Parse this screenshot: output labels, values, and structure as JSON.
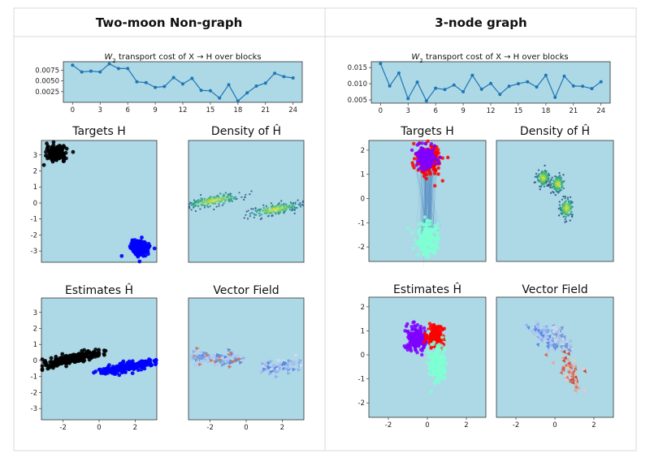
{
  "columns": [
    {
      "title": "Two-moon Non-graph",
      "transport_title_pre": "W",
      "transport_title_sub": "2",
      "transport_title_post": " transport cost of X → H over blocks",
      "panel_titles": {
        "targets": "Targets H",
        "density": "Density of Ĥ",
        "estimates": "Estimates Ĥ",
        "vector_field": "Vector Field"
      }
    },
    {
      "title": "3-node graph",
      "transport_title_pre": "W",
      "transport_title_sub": "2",
      "transport_title_post": " transport cost of X → H over blocks",
      "panel_titles": {
        "targets": "Targets H",
        "density": "Density of Ĥ",
        "estimates": "Estimates Ĥ",
        "vector_field": "Vector Field"
      }
    }
  ],
  "colors": {
    "panel_bg": "#add8e6",
    "line": "#1f77b4",
    "black_cluster": "#000000",
    "blue_cluster": "#0000ff",
    "red_cluster": "#ff0000",
    "purple_cluster": "#7f00ff",
    "green_cluster": "#7fffd4",
    "density_low": "#3b4cc0",
    "density_high": "#fde725"
  },
  "chart_data": [
    {
      "type": "line",
      "title": "W2 transport cost of X → H over blocks",
      "x": [
        0,
        1,
        2,
        3,
        4,
        5,
        6,
        7,
        8,
        9,
        10,
        11,
        12,
        13,
        14,
        15,
        16,
        17,
        18,
        19,
        20,
        21,
        22,
        23,
        24
      ],
      "series": [
        {
          "values": [
            0.0087,
            0.0071,
            0.0073,
            0.0071,
            0.009,
            0.0079,
            0.0079,
            0.0048,
            0.0046,
            0.0035,
            0.0037,
            0.0058,
            0.0043,
            0.0056,
            0.0028,
            0.0027,
            0.001,
            0.0041,
            0.0003,
            0.0022,
            0.0038,
            0.0045,
            0.0068,
            0.006,
            0.0057
          ]
        }
      ],
      "xticks": [
        "0",
        "3",
        "6",
        "9",
        "12",
        "15",
        "18",
        "21",
        "24"
      ],
      "yticks": [
        "0.0025",
        "0.0050",
        "0.0075"
      ],
      "ylim": [
        0.0,
        0.0095
      ]
    },
    {
      "type": "line",
      "title": "W2 transport cost of X → H over blocks",
      "x": [
        0,
        1,
        2,
        3,
        4,
        5,
        6,
        7,
        8,
        9,
        10,
        11,
        12,
        13,
        14,
        15,
        16,
        17,
        18,
        19,
        20,
        21,
        22,
        23,
        24
      ],
      "series": [
        {
          "values": [
            0.0162,
            0.0093,
            0.0133,
            0.0054,
            0.0105,
            0.0047,
            0.0086,
            0.0082,
            0.0096,
            0.0075,
            0.0126,
            0.0083,
            0.0101,
            0.0067,
            0.0092,
            0.01,
            0.0106,
            0.009,
            0.0126,
            0.0058,
            0.0123,
            0.0093,
            0.0092,
            0.0085,
            0.0106
          ]
        }
      ],
      "xticks": [
        "0",
        "3",
        "6",
        "9",
        "12",
        "15",
        "18",
        "21",
        "24"
      ],
      "yticks": [
        "0.005",
        "0.010",
        "0.015"
      ],
      "ylim": [
        0.004,
        0.0168
      ]
    },
    {
      "type": "scatter",
      "title": "Targets H",
      "xlim": [
        -3.2,
        3.2
      ],
      "ylim": [
        -3.7,
        3.9
      ],
      "yticks": [
        "3",
        "2",
        "1",
        "0",
        "-1",
        "-2",
        "-3"
      ],
      "series": [
        {
          "color": "black",
          "center": [
            -2.4,
            3.1
          ],
          "spread": [
            0.7,
            0.6
          ]
        },
        {
          "color": "blue",
          "center": [
            2.3,
            -2.8
          ],
          "spread": [
            0.7,
            0.6
          ]
        }
      ]
    },
    {
      "type": "scatter",
      "title": "Density of Ĥ",
      "xlim": [
        -3.2,
        3.2
      ],
      "ylim": [
        -3.7,
        3.9
      ],
      "series": [
        {
          "color": "density",
          "center": [
            -1.8,
            0.15
          ],
          "spread": [
            2.2,
            0.5
          ],
          "slope": 0.2
        },
        {
          "color": "density",
          "center": [
            1.6,
            -0.4
          ],
          "spread": [
            2.0,
            0.5
          ],
          "slope": 0.2
        }
      ]
    },
    {
      "type": "scatter",
      "title": "Estimates Ĥ",
      "xlim": [
        -3.2,
        3.2
      ],
      "ylim": [
        -3.7,
        3.9
      ],
      "xticks": [
        "-2",
        "0",
        "2"
      ],
      "yticks": [
        "3",
        "2",
        "1",
        "0",
        "-1",
        "-2",
        "-3"
      ],
      "series": [
        {
          "color": "black",
          "center": [
            -1.5,
            0.1
          ],
          "spread": [
            2.4,
            0.4
          ],
          "slope": 0.22
        },
        {
          "color": "blue",
          "center": [
            1.6,
            -0.4
          ],
          "spread": [
            2.2,
            0.4
          ],
          "slope": 0.2
        }
      ]
    },
    {
      "type": "scatter",
      "title": "Vector Field",
      "xlim": [
        -3.2,
        3.2
      ],
      "ylim": [
        -3.7,
        3.9
      ],
      "xticks": [
        "-2",
        "0",
        "2"
      ]
    },
    {
      "type": "scatter",
      "title": "Targets H",
      "xlim": [
        -3.0,
        3.0
      ],
      "ylim": [
        -2.6,
        2.4
      ],
      "yticks": [
        "2",
        "1",
        "0",
        "-1",
        "-2"
      ],
      "series": [
        {
          "color": "red",
          "center": [
            0.1,
            1.6
          ],
          "spread": [
            0.9,
            0.9
          ]
        },
        {
          "color": "purple",
          "center": [
            -0.1,
            1.7
          ],
          "spread": [
            0.6,
            0.6
          ]
        },
        {
          "color": "green",
          "center": [
            0.0,
            -1.7
          ],
          "spread": [
            0.8,
            1.0
          ]
        }
      ]
    },
    {
      "type": "scatter",
      "title": "Density of Ĥ",
      "xlim": [
        -3.0,
        3.0
      ],
      "ylim": [
        -2.6,
        2.4
      ],
      "series": [
        {
          "color": "density",
          "center": [
            -0.6,
            0.85
          ],
          "spread": [
            0.5,
            0.5
          ]
        },
        {
          "color": "density",
          "center": [
            0.15,
            0.6
          ],
          "spread": [
            0.5,
            0.5
          ]
        },
        {
          "color": "density",
          "center": [
            0.6,
            -0.4
          ],
          "spread": [
            0.5,
            0.6
          ]
        }
      ]
    },
    {
      "type": "scatter",
      "title": "Estimates Ĥ",
      "xlim": [
        -3.0,
        3.0
      ],
      "ylim": [
        -2.6,
        2.4
      ],
      "xticks": [
        "-2",
        "0",
        "2"
      ],
      "yticks": [
        "2",
        "1",
        "0",
        "-1",
        "-2"
      ],
      "series": [
        {
          "color": "purple",
          "center": [
            -0.6,
            0.7
          ],
          "spread": [
            0.7,
            0.7
          ]
        },
        {
          "color": "red",
          "center": [
            0.4,
            0.75
          ],
          "spread": [
            0.6,
            0.7
          ]
        },
        {
          "color": "green",
          "center": [
            0.5,
            -0.3
          ],
          "spread": [
            0.6,
            1.1
          ]
        }
      ]
    },
    {
      "type": "scatter",
      "title": "Vector Field",
      "xlim": [
        -3.0,
        3.0
      ],
      "ylim": [
        -2.6,
        2.4
      ],
      "xticks": [
        "-2",
        "0",
        "2"
      ]
    }
  ]
}
